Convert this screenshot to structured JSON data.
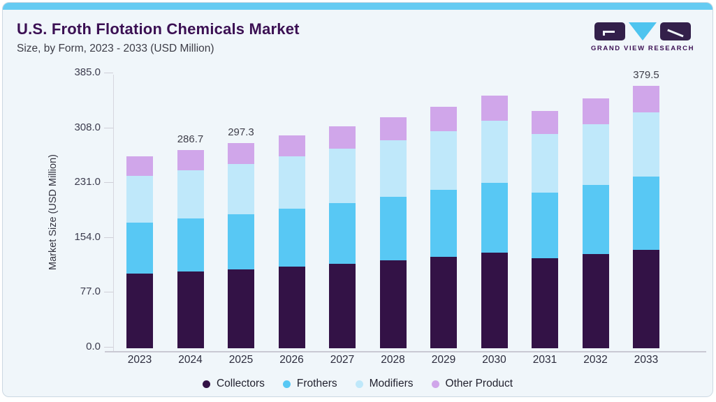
{
  "header": {
    "title": "U.S. Froth Flotation Chemicals Market",
    "subtitle": "Size, by Form, 2023 - 2033 (USD Million)",
    "logo_brand": "GRAND VIEW RESEARCH"
  },
  "colors": {
    "accent_bar": "#65cbf2",
    "card_background": "#f0f6fa",
    "title_text": "#3b1053",
    "collectors": "#331246",
    "frothers": "#58c8f4",
    "modifiers": "#bfe8fa",
    "other_product": "#d0a6ea"
  },
  "chart_data": {
    "type": "bar",
    "stacked": true,
    "title": "U.S. Froth Flotation Chemicals Market Size, by Form, 2023 - 2033 (USD Million)",
    "ylabel": "Market Size (USD Million)",
    "xlabel": "",
    "ylim": [
      0,
      385
    ],
    "y_ticks": [
      "385.0",
      "308.0",
      "231.0",
      "154.0",
      "77.0",
      "0.0"
    ],
    "grid": false,
    "legend_position": "bottom",
    "categories": [
      "2023",
      "2024",
      "2025",
      "2026",
      "2027",
      "2028",
      "2029",
      "2030",
      "2031",
      "2032",
      "2033"
    ],
    "series": [
      {
        "name": "Collectors",
        "color": "#331246",
        "values": [
          107.9,
          110.8,
          114.3,
          118.0,
          122.5,
          127.1,
          132.6,
          138.3,
          130.2,
          136.2,
          142.7
        ]
      },
      {
        "name": "Frothers",
        "color": "#58c8f4",
        "values": [
          73.5,
          77.4,
          79.9,
          83.9,
          87.5,
          91.7,
          96.3,
          101.1,
          95.0,
          100.1,
          106.1
        ]
      },
      {
        "name": "Modifiers",
        "color": "#bfe8fa",
        "values": [
          67.7,
          69.3,
          72.9,
          76.2,
          78.8,
          82.2,
          84.9,
          90.0,
          84.9,
          88.3,
          93.0
        ]
      },
      {
        "name": "Other Product",
        "color": "#d0a6ea",
        "values": [
          28.3,
          29.2,
          30.2,
          30.3,
          32.3,
          33.8,
          36.1,
          36.4,
          33.8,
          36.7,
          37.7
        ]
      }
    ],
    "totals": [
      277.4,
      286.7,
      297.3,
      308.4,
      321.1,
      334.8,
      349.9,
      365.8,
      343.9,
      361.3,
      379.5
    ],
    "total_labels_shown": [
      "",
      "286.7",
      "297.3",
      "",
      "",
      "",
      "",
      "",
      "",
      "",
      "379.5"
    ]
  }
}
